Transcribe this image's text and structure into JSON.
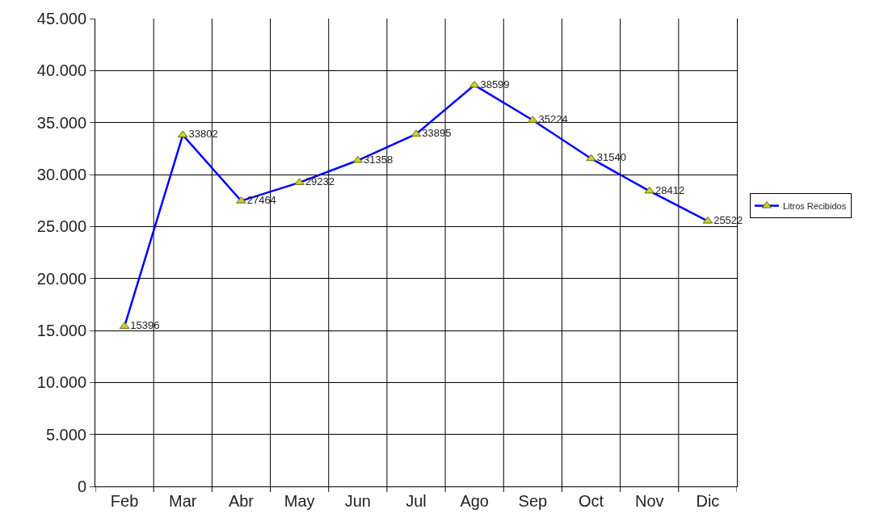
{
  "chart_data": {
    "type": "line",
    "categories": [
      "Feb",
      "Mar",
      "Abr",
      "May",
      "Jun",
      "Jul",
      "Ago",
      "Sep",
      "Oct",
      "Nov",
      "Dic"
    ],
    "series": [
      {
        "name": "Litros Recibidos",
        "color": "#0000ff",
        "values": [
          15396,
          33802,
          27464,
          29232,
          31358,
          33895,
          38599,
          35224,
          31540,
          28412,
          25522
        ]
      }
    ],
    "ylim": [
      0,
      45000
    ],
    "yticks": [
      0,
      {
        "value": 5000,
        "label": "5.000"
      },
      {
        "value": 10000,
        "label": "10.000"
      },
      {
        "value": 15000,
        "label": "15.000"
      },
      {
        "value": 20000,
        "label": "20.000"
      },
      {
        "value": 25000,
        "label": "25.000"
      },
      {
        "value": 30000,
        "label": "30.000"
      },
      {
        "value": 35000,
        "label": "35.000"
      },
      {
        "value": 40000,
        "label": "40.000"
      },
      {
        "value": 45000,
        "label": "45.000"
      }
    ],
    "grid": true,
    "legend": "right",
    "marker": "triangle",
    "line_style": "solid",
    "data_labels": true
  }
}
